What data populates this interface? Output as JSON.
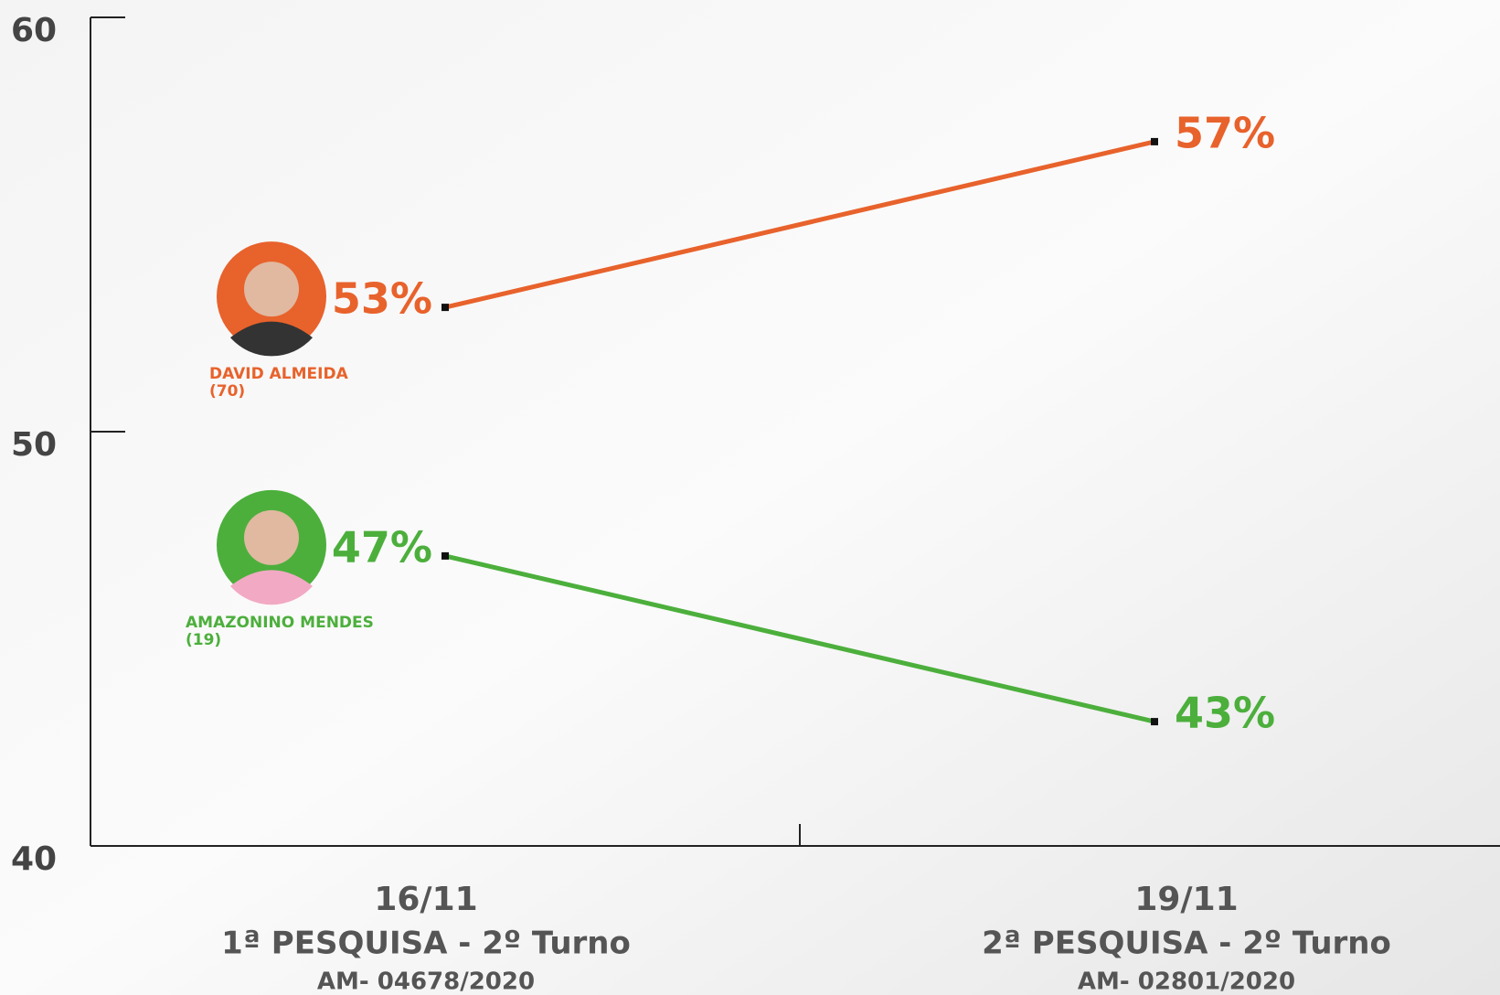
{
  "chart_data": {
    "type": "line",
    "categories": [
      "16/11",
      "19/11"
    ],
    "category_sublabels": [
      [
        "1ª PESQUISA - 2º Turno",
        "AM- 04678/2020"
      ],
      [
        "2ª PESQUISA - 2º Turno",
        "AM- 02801/2020"
      ]
    ],
    "series": [
      {
        "name": "DAVID ALMEIDA",
        "number": "(70)",
        "color": "#e8622c",
        "values": [
          53,
          57
        ],
        "value_labels": [
          "53%",
          "57%"
        ]
      },
      {
        "name": "AMAZONINO MENDES",
        "number": "(19)",
        "color": "#4caf3c",
        "values": [
          47,
          43
        ],
        "value_labels": [
          "47%",
          "43%"
        ]
      }
    ],
    "ylim": [
      40,
      60
    ],
    "yticks": [
      40,
      50,
      60
    ]
  }
}
